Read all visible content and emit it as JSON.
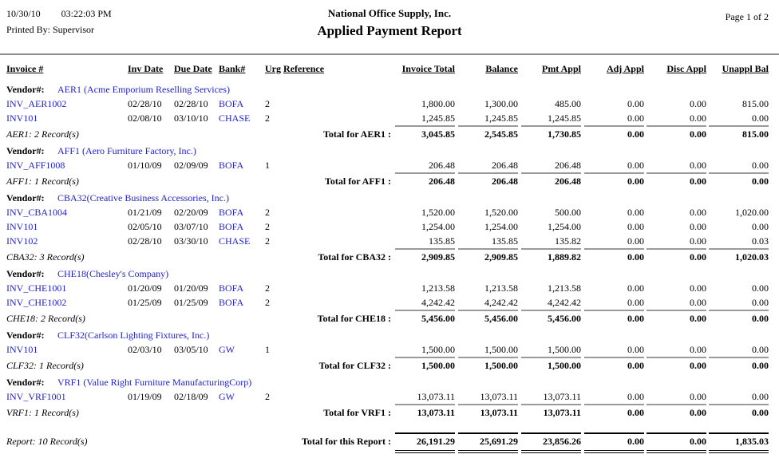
{
  "header": {
    "date": "10/30/10",
    "time": "03:22:03 PM",
    "printed_by": "Printed By: Supervisor",
    "company": "National Office Supply, Inc.",
    "title": "Applied Payment Report",
    "page": "Page 1 of 2"
  },
  "columns": [
    "Invoice #",
    "Inv Date",
    "Due Date",
    "Bank#",
    "Urg",
    "Reference",
    "Invoice Total",
    "Balance",
    "Pmt Appl",
    "Adj Appl",
    "Disc Appl",
    "Unappl Bal"
  ],
  "labels": {
    "vendor": "Vendor#:"
  },
  "groups": [
    {
      "vendor": "AER1 (Acme Emporium Reselling Services)",
      "rows": [
        {
          "invoice": "INV_AER1002",
          "inv_date": "02/28/10",
          "due_date": "02/28/10",
          "bank": "BOFA",
          "urg": "2",
          "reference": "",
          "invoice_total": "1,800.00",
          "balance": "1,300.00",
          "pmt_appl": "485.00",
          "adj_appl": "0.00",
          "disc_appl": "0.00",
          "unappl_bal": "815.00"
        },
        {
          "invoice": "INV101",
          "inv_date": "02/08/10",
          "due_date": "03/10/10",
          "bank": "CHASE",
          "urg": "2",
          "reference": "",
          "invoice_total": "1,245.85",
          "balance": "1,245.85",
          "pmt_appl": "1,245.85",
          "adj_appl": "0.00",
          "disc_appl": "0.00",
          "unappl_bal": "0.00"
        }
      ],
      "record_note": "AER1: 2 Record(s)",
      "total_label": "Total for AER1 :",
      "totals": [
        "3,045.85",
        "2,545.85",
        "1,730.85",
        "0.00",
        "0.00",
        "815.00"
      ]
    },
    {
      "vendor": "AFF1 (Aero Furniture Factory, Inc.)",
      "rows": [
        {
          "invoice": "INV_AFF1008",
          "inv_date": "01/10/09",
          "due_date": "02/09/09",
          "bank": "BOFA",
          "urg": "1",
          "reference": "",
          "invoice_total": "206.48",
          "balance": "206.48",
          "pmt_appl": "206.48",
          "adj_appl": "0.00",
          "disc_appl": "0.00",
          "unappl_bal": "0.00"
        }
      ],
      "record_note": "AFF1: 1 Record(s)",
      "total_label": "Total for AFF1 :",
      "totals": [
        "206.48",
        "206.48",
        "206.48",
        "0.00",
        "0.00",
        "0.00"
      ]
    },
    {
      "vendor": "CBA32(Creative Business Accessories, Inc.)",
      "rows": [
        {
          "invoice": "INV_CBA1004",
          "inv_date": "01/21/09",
          "due_date": "02/20/09",
          "bank": "BOFA",
          "urg": "2",
          "reference": "",
          "invoice_total": "1,520.00",
          "balance": "1,520.00",
          "pmt_appl": "500.00",
          "adj_appl": "0.00",
          "disc_appl": "0.00",
          "unappl_bal": "1,020.00"
        },
        {
          "invoice": "INV101",
          "inv_date": "02/05/10",
          "due_date": "03/07/10",
          "bank": "BOFA",
          "urg": "2",
          "reference": "",
          "invoice_total": "1,254.00",
          "balance": "1,254.00",
          "pmt_appl": "1,254.00",
          "adj_appl": "0.00",
          "disc_appl": "0.00",
          "unappl_bal": "0.00"
        },
        {
          "invoice": "INV102",
          "inv_date": "02/28/10",
          "due_date": "03/30/10",
          "bank": "CHASE",
          "urg": "2",
          "reference": "",
          "invoice_total": "135.85",
          "balance": "135.85",
          "pmt_appl": "135.82",
          "adj_appl": "0.00",
          "disc_appl": "0.00",
          "unappl_bal": "0.03"
        }
      ],
      "record_note": "CBA32: 3 Record(s)",
      "total_label": "Total for CBA32 :",
      "totals": [
        "2,909.85",
        "2,909.85",
        "1,889.82",
        "0.00",
        "0.00",
        "1,020.03"
      ]
    },
    {
      "vendor": "CHE18(Chesley's Company)",
      "rows": [
        {
          "invoice": "INV_CHE1001",
          "inv_date": "01/20/09",
          "due_date": "01/20/09",
          "bank": "BOFA",
          "urg": "2",
          "reference": "",
          "invoice_total": "1,213.58",
          "balance": "1,213.58",
          "pmt_appl": "1,213.58",
          "adj_appl": "0.00",
          "disc_appl": "0.00",
          "unappl_bal": "0.00"
        },
        {
          "invoice": "INV_CHE1002",
          "inv_date": "01/25/09",
          "due_date": "01/25/09",
          "bank": "BOFA",
          "urg": "2",
          "reference": "",
          "invoice_total": "4,242.42",
          "balance": "4,242.42",
          "pmt_appl": "4,242.42",
          "adj_appl": "0.00",
          "disc_appl": "0.00",
          "unappl_bal": "0.00"
        }
      ],
      "record_note": "CHE18: 2 Record(s)",
      "total_label": "Total for CHE18 :",
      "totals": [
        "5,456.00",
        "5,456.00",
        "5,456.00",
        "0.00",
        "0.00",
        "0.00"
      ]
    },
    {
      "vendor": "CLF32(Carlson Lighting Fixtures, Inc.)",
      "rows": [
        {
          "invoice": "INV101",
          "inv_date": "02/03/10",
          "due_date": "03/05/10",
          "bank": "GW",
          "urg": "1",
          "reference": "",
          "invoice_total": "1,500.00",
          "balance": "1,500.00",
          "pmt_appl": "1,500.00",
          "adj_appl": "0.00",
          "disc_appl": "0.00",
          "unappl_bal": "0.00"
        }
      ],
      "record_note": "CLF32: 1 Record(s)",
      "total_label": "Total for CLF32 :",
      "totals": [
        "1,500.00",
        "1,500.00",
        "1,500.00",
        "0.00",
        "0.00",
        "0.00"
      ]
    },
    {
      "vendor": "VRF1 (Value Right Furniture ManufacturingCorp)",
      "rows": [
        {
          "invoice": "INV_VRF1001",
          "inv_date": "01/19/09",
          "due_date": "02/18/09",
          "bank": "GW",
          "urg": "2",
          "reference": "",
          "invoice_total": "13,073.11",
          "balance": "13,073.11",
          "pmt_appl": "13,073.11",
          "adj_appl": "0.00",
          "disc_appl": "0.00",
          "unappl_bal": "0.00"
        }
      ],
      "record_note": "VRF1: 1 Record(s)",
      "total_label": "Total for VRF1 :",
      "totals": [
        "13,073.11",
        "13,073.11",
        "13,073.11",
        "0.00",
        "0.00",
        "0.00"
      ]
    }
  ],
  "report_footer": {
    "record_note": "Report: 10 Record(s)",
    "total_label": "Total for this Report :",
    "totals": [
      "26,191.29",
      "25,691.29",
      "23,856.26",
      "0.00",
      "0.00",
      "1,835.03"
    ]
  },
  "colors": {
    "link_blue": "#2222cc",
    "rule_gray": "#8c8c8c",
    "total_line_gray": "#9a9a9a",
    "text": "#000000",
    "background": "#ffffff"
  }
}
